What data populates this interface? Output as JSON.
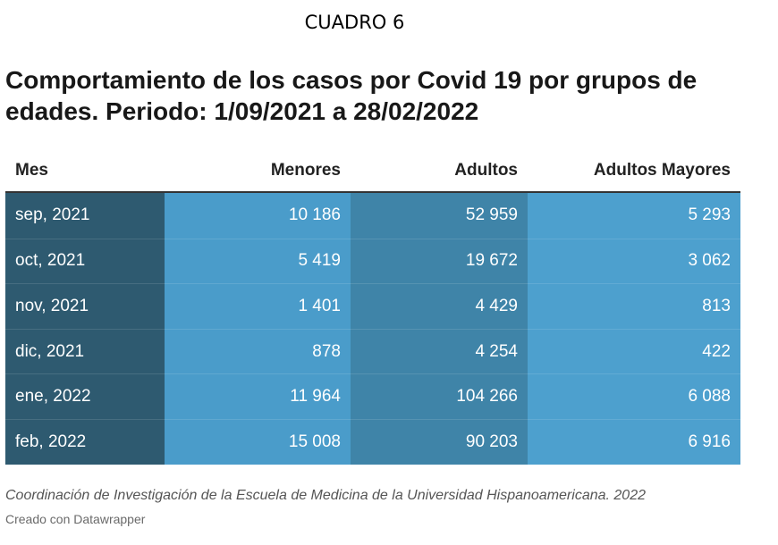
{
  "label": "CUADRO 6",
  "title": "Comportamiento de los casos por Covid 19 por grupos de edades. Periodo: 1/09/2021 a 28/02/2022",
  "table": {
    "headers": [
      "Mes",
      "Menores",
      "Adultos",
      "Adultos Mayores"
    ],
    "rows": [
      [
        "sep, 2021",
        "10 186",
        "52 959",
        "5 293"
      ],
      [
        "oct, 2021",
        "5 419",
        "19 672",
        "3 062"
      ],
      [
        "nov, 2021",
        "1 401",
        "4 429",
        "813"
      ],
      [
        "dic, 2021",
        "878",
        "4 254",
        "422"
      ],
      [
        "ene, 2022",
        "11 964",
        "104 266",
        "6 088"
      ],
      [
        "feb, 2022",
        "15 008",
        "90 203",
        "6 916"
      ]
    ]
  },
  "footer": {
    "source": "Coordinación de Investigación de la Escuela de Medicina de la Universidad Hispanoamericana. 2022",
    "credit": "Creado con Datawrapper"
  },
  "colors": {
    "month_column": "#2e5a70",
    "menores_column": "#4a9cca",
    "adultos_column": "#3f84a8",
    "adultos_mayores_column": "#4da0ce"
  }
}
